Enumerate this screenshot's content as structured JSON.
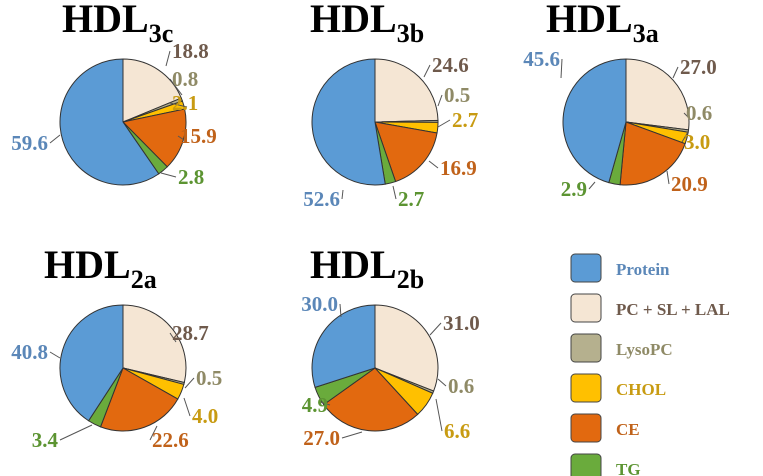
{
  "legend": [
    {
      "label": "Protein",
      "color": "#5b9bd5",
      "text_color": "#5b87b8"
    },
    {
      "label": "PC + SL + LAL",
      "color": "#f5e6d4",
      "text_color": "#6f5a4c"
    },
    {
      "label": "LysoPC",
      "color": "#b5b08e",
      "text_color": "#8f8a66"
    },
    {
      "label": "CHOL",
      "color": "#ffc000",
      "text_color": "#c89b12"
    },
    {
      "label": "CE",
      "color": "#e2690f",
      "text_color": "#c0621a"
    },
    {
      "label": "TG",
      "color": "#6aab3c",
      "text_color": "#5c9432"
    }
  ],
  "chart_data": [
    {
      "type": "pie",
      "title": "HDL",
      "subscript": "3c",
      "categories": [
        "PC + SL + LAL",
        "LysoPC",
        "CHOL",
        "CE",
        "TG",
        "Protein"
      ],
      "values": [
        18.8,
        0.8,
        2.1,
        15.9,
        2.8,
        59.6
      ],
      "labels": [
        "18.8",
        "0.8",
        "2.1",
        "15.9",
        "2.8",
        "59.6"
      ]
    },
    {
      "type": "pie",
      "title": "HDL",
      "subscript": "3b",
      "categories": [
        "PC + SL + LAL",
        "LysoPC",
        "CHOL",
        "CE",
        "TG",
        "Protein"
      ],
      "values": [
        24.6,
        0.5,
        2.7,
        16.9,
        2.7,
        52.6
      ],
      "labels": [
        "24.6",
        "0.5",
        "2.7",
        "16.9",
        "2.7",
        "52.6"
      ]
    },
    {
      "type": "pie",
      "title": "HDL",
      "subscript": "3a",
      "categories": [
        "PC + SL + LAL",
        "LysoPC",
        "CHOL",
        "CE",
        "TG",
        "Protein"
      ],
      "values": [
        27.0,
        0.6,
        3.0,
        20.9,
        2.9,
        45.6
      ],
      "labels": [
        "27.0",
        "0.6",
        "3.0",
        "20.9",
        "2.9",
        "45.6"
      ]
    },
    {
      "type": "pie",
      "title": "HDL",
      "subscript": "2a",
      "categories": [
        "PC + SL + LAL",
        "LysoPC",
        "CHOL",
        "CE",
        "TG",
        "Protein"
      ],
      "values": [
        28.7,
        0.5,
        4.0,
        22.6,
        3.4,
        40.8
      ],
      "labels": [
        "28.7",
        "0.5",
        "4.0",
        "22.6",
        "3.4",
        "40.8"
      ]
    },
    {
      "type": "pie",
      "title": "HDL",
      "subscript": "2b",
      "categories": [
        "PC + SL + LAL",
        "LysoPC",
        "CHOL",
        "CE",
        "TG",
        "Protein"
      ],
      "values": [
        31.0,
        0.6,
        6.6,
        27.0,
        4.9,
        30.0
      ],
      "labels": [
        "31.0",
        "0.6",
        "6.6",
        "27.0",
        "4.9",
        "30.0"
      ]
    }
  ]
}
